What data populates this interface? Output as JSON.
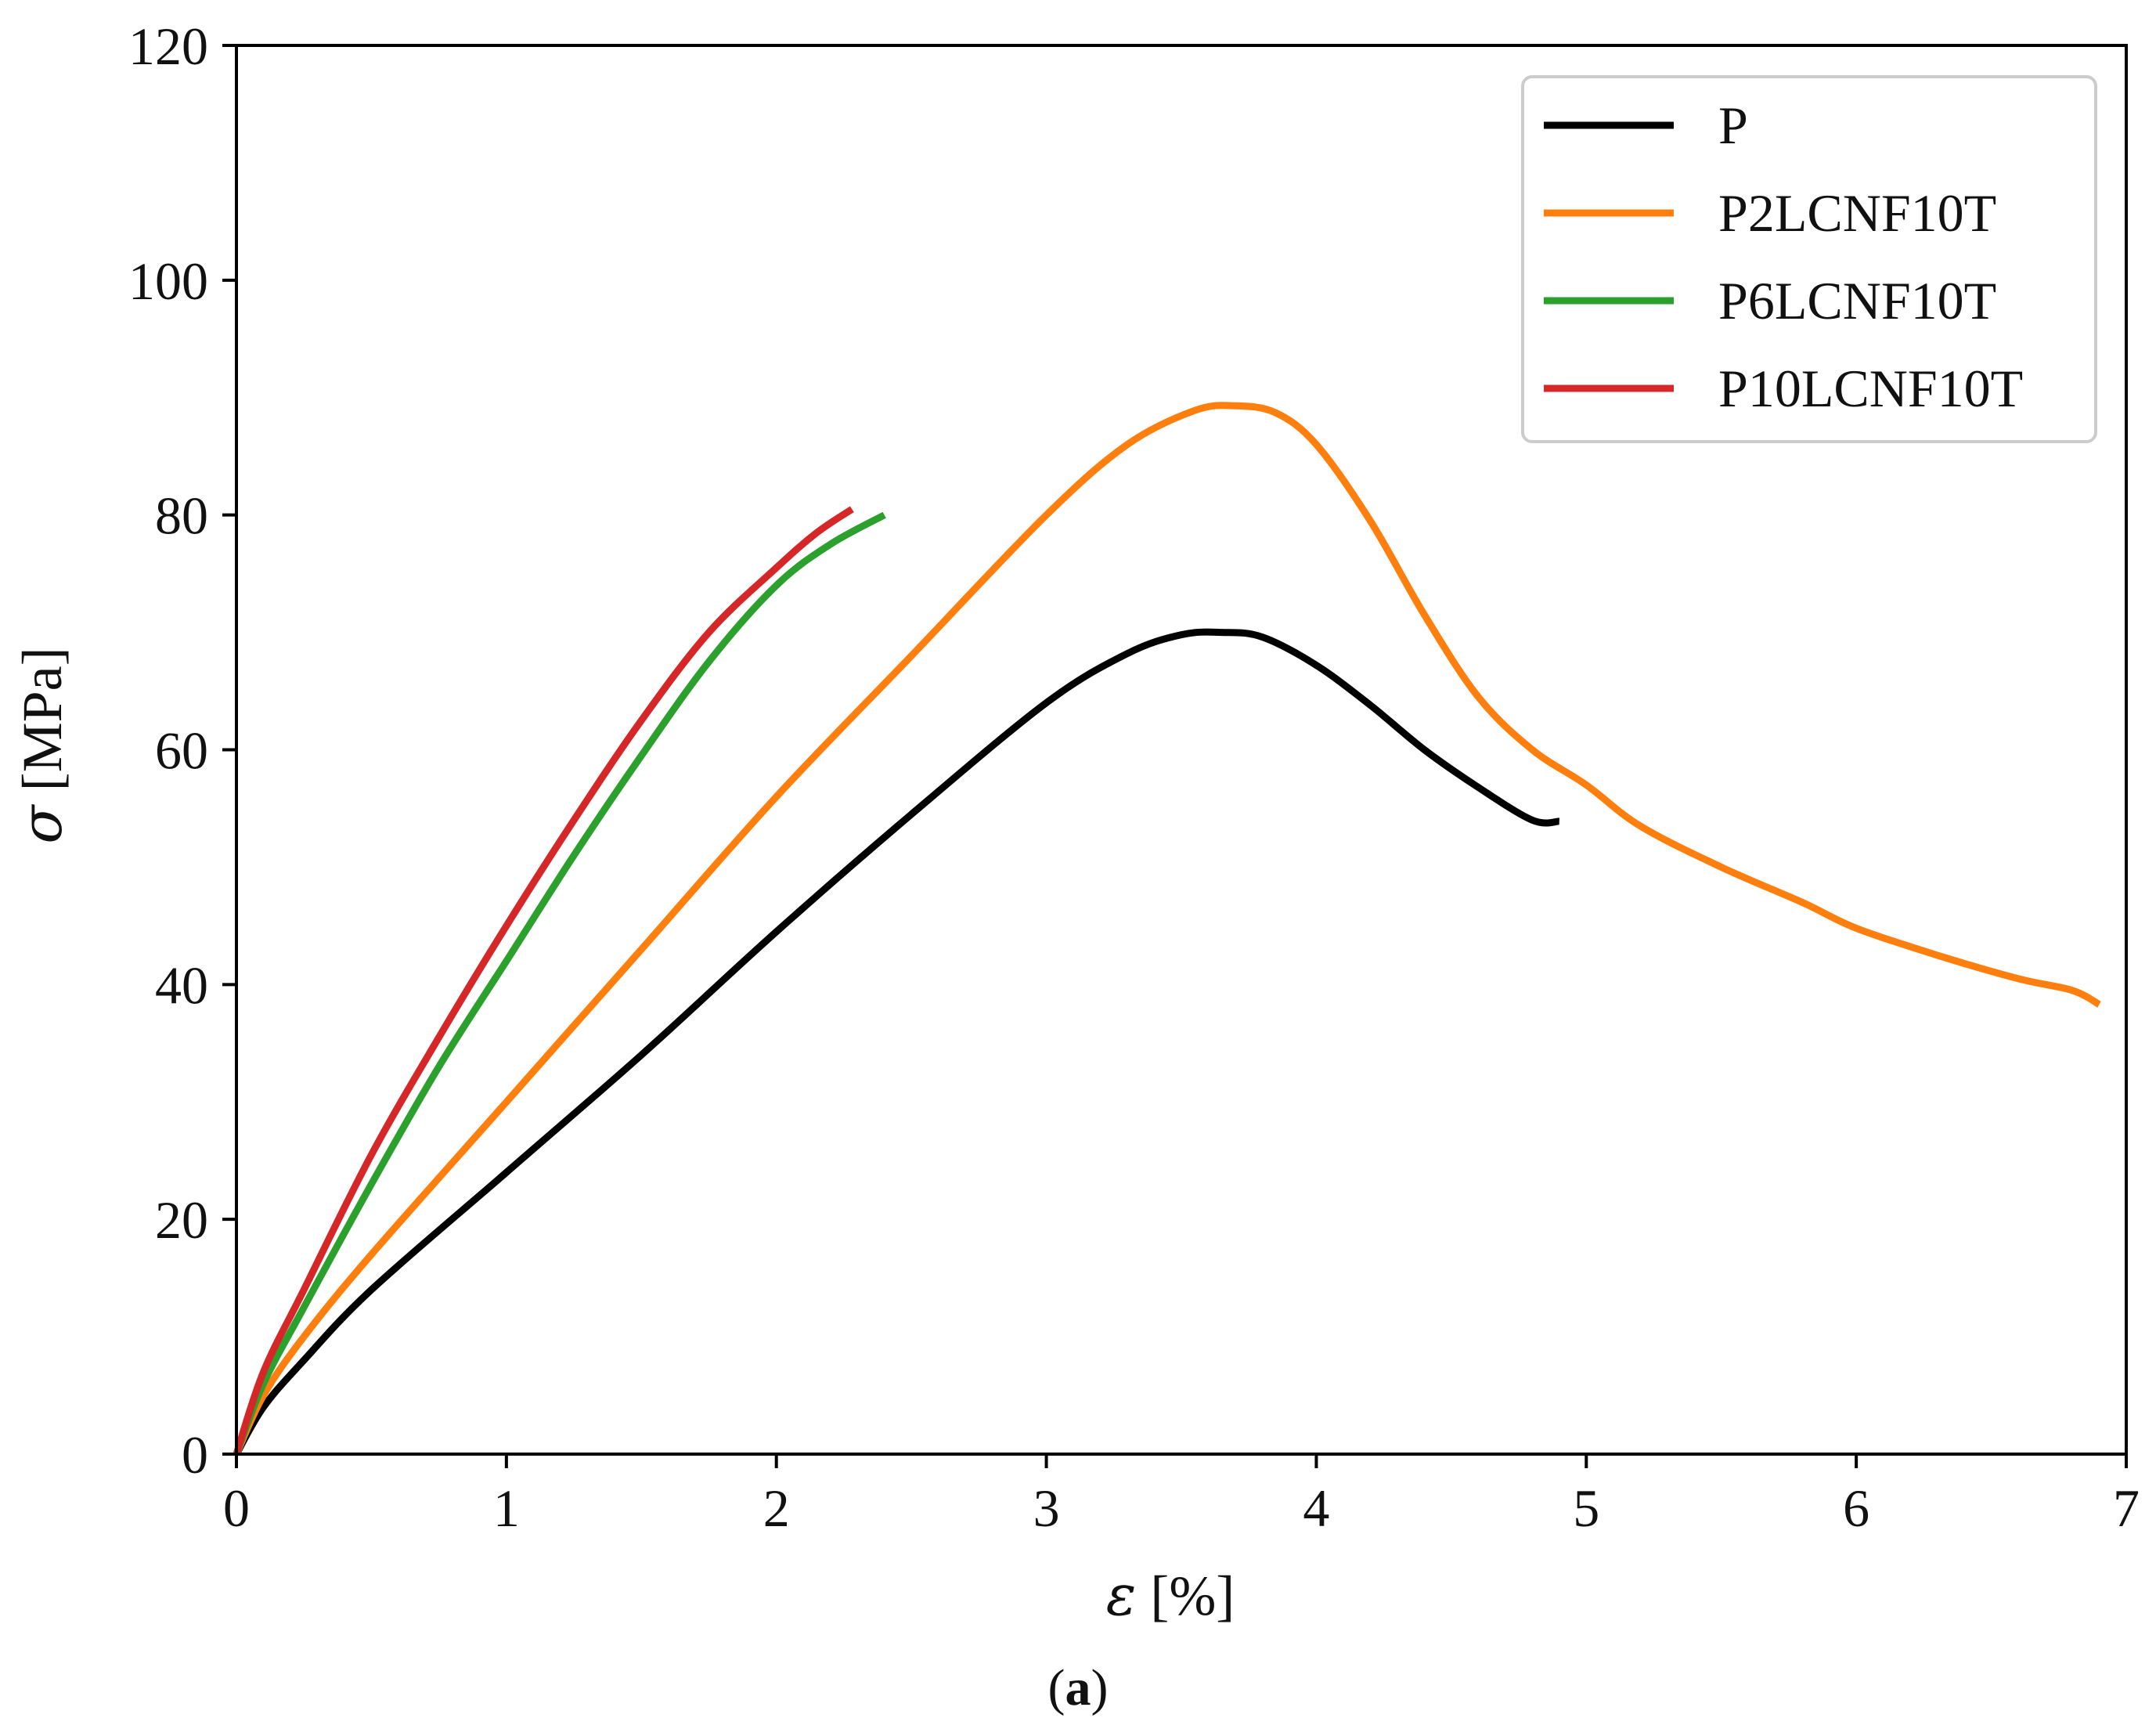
{
  "chart_data": {
    "type": "line",
    "title": "",
    "xlabel_symbol": "ε",
    "xlabel_unit": " [%]",
    "ylabel_symbol": "σ",
    "ylabel_unit": " [MPa]",
    "xlim": [
      0,
      7
    ],
    "ylim": [
      0,
      120
    ],
    "xticks": [
      0,
      1,
      2,
      3,
      4,
      5,
      6,
      7
    ],
    "yticks": [
      0,
      20,
      40,
      60,
      80,
      100,
      120
    ],
    "grid": false,
    "legend_position": "top-right",
    "series": [
      {
        "name": "P",
        "color": "#000000",
        "x": [
          0,
          0.1,
          0.25,
          0.5,
          1.0,
          1.5,
          2.0,
          2.5,
          3.0,
          3.3,
          3.5,
          3.65,
          3.8,
          4.0,
          4.2,
          4.4,
          4.6,
          4.8,
          4.9
        ],
        "y": [
          0,
          4,
          8,
          14,
          24,
          34,
          44.5,
          54.5,
          64,
          68.2,
          69.8,
          70,
          69.6,
          67.2,
          63.8,
          60,
          56.8,
          54,
          53.9
        ]
      },
      {
        "name": "P2LCNF10T",
        "color": "#ff7f0e",
        "x": [
          0,
          0.1,
          0.25,
          0.5,
          1.0,
          1.5,
          2.0,
          2.5,
          3.0,
          3.3,
          3.55,
          3.7,
          3.85,
          4.0,
          4.2,
          4.4,
          4.6,
          4.8,
          5.0,
          5.2,
          5.5,
          5.8,
          6.0,
          6.3,
          6.6,
          6.8,
          6.9
        ],
        "y": [
          0,
          5,
          10,
          17,
          30,
          43,
          56,
          68,
          80,
          86,
          88.9,
          89.3,
          88.7,
          86,
          79.5,
          71.5,
          64.5,
          60,
          57,
          53.5,
          50,
          47,
          44.8,
          42.5,
          40.5,
          39.5,
          38.3
        ]
      },
      {
        "name": "P6LCNF10T",
        "color": "#2ca02c",
        "x": [
          0,
          0.1,
          0.25,
          0.5,
          0.75,
          1.0,
          1.25,
          1.5,
          1.75,
          2.0,
          2.2,
          2.4
        ],
        "y": [
          0,
          6,
          12.5,
          23,
          33,
          42,
          51,
          59.5,
          67.5,
          74,
          77.5,
          80
        ]
      },
      {
        "name": "P10LCNF10T",
        "color": "#d62728",
        "x": [
          0,
          0.1,
          0.25,
          0.5,
          0.75,
          1.0,
          1.25,
          1.5,
          1.75,
          2.0,
          2.15,
          2.28
        ],
        "y": [
          0,
          7,
          14,
          25.5,
          35.5,
          45,
          54,
          62.5,
          70,
          75.5,
          78.5,
          80.5
        ]
      }
    ]
  },
  "caption": {
    "open": "(",
    "letter": "a",
    "close": ")"
  }
}
